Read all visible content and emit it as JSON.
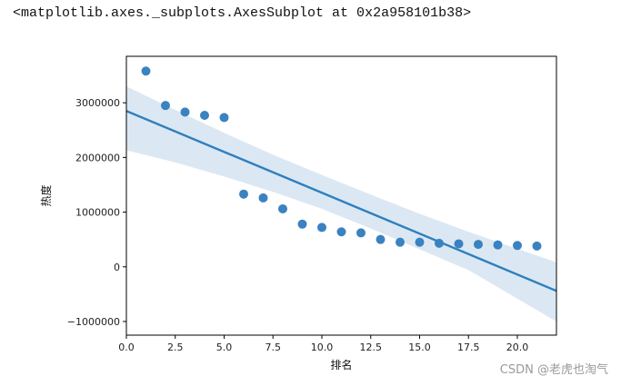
{
  "output_repr": "<matplotlib.axes._subplots.AxesSubplot at 0x2a958101b38>",
  "watermark": "CSDN @老虎也淘气",
  "colors": {
    "marker": "#3a82c0",
    "line": "#2f7fbf",
    "band": "#cfe0ef",
    "axes": "#000000"
  },
  "chart_data": {
    "type": "scatter",
    "xlabel": "排名",
    "ylabel": "热度",
    "xlim": [
      0,
      22
    ],
    "ylim": [
      -1250000,
      3850000
    ],
    "xticks": [
      0,
      2.5,
      5,
      7.5,
      10,
      12.5,
      15,
      17.5,
      20
    ],
    "xtick_labels": [
      "0.0",
      "2.5",
      "5.0",
      "7.5",
      "10.0",
      "12.5",
      "15.0",
      "17.5",
      "20.0"
    ],
    "yticks": [
      -1000000,
      0,
      1000000,
      2000000,
      3000000
    ],
    "ytick_labels": [
      "−1000000",
      "0",
      "1000000",
      "2000000",
      "3000000"
    ],
    "grid": false,
    "x": [
      1,
      2,
      3,
      4,
      5,
      6,
      7,
      8,
      9,
      10,
      11,
      12,
      13,
      14,
      15,
      16,
      17,
      18,
      19,
      20,
      21
    ],
    "y": [
      3580000,
      2950000,
      2830000,
      2770000,
      2730000,
      1330000,
      1260000,
      1060000,
      780000,
      720000,
      640000,
      620000,
      500000,
      450000,
      450000,
      430000,
      420000,
      410000,
      400000,
      390000,
      380000
    ],
    "regression": {
      "x": [
        0,
        22
      ],
      "y": [
        2850000,
        -440000
      ]
    },
    "ci_band": {
      "x": [
        0,
        2.5,
        5,
        7.5,
        10,
        12.5,
        15,
        17.5,
        22
      ],
      "upper": [
        3300000,
        2870000,
        2450000,
        2050000,
        1680000,
        1320000,
        970000,
        640000,
        80000
      ],
      "lower": [
        2130000,
        1910000,
        1650000,
        1370000,
        1060000,
        700000,
        320000,
        -60000,
        -1000000
      ]
    }
  }
}
